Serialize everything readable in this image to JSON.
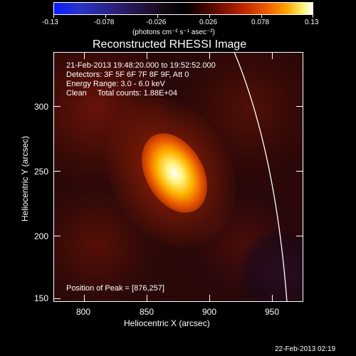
{
  "colorbar": {
    "tick_labels": [
      "-0.13",
      "-0.078",
      "-0.026",
      "0.026",
      "0.078",
      "0.13"
    ],
    "units": "(photons cm⁻² s⁻¹ asec⁻²)"
  },
  "title": "Reconstructed RHESSI Image",
  "info": {
    "line1": "21-Feb-2013 19:48:20.000 to 19:52:52.000",
    "line2": "Detectors: 3F 5F 6F 7F 8F 9F, Att 0",
    "line3": "Energy Range: 3.0 - 6.0 keV",
    "line4": "Clean     Total counts: 1.88E+04"
  },
  "peak": "Position of Peak = [876,257]",
  "axes": {
    "xlabel": "Heliocentric X (arcsec)",
    "ylabel": "Heliocentric Y (arcsec)",
    "x_ticks": [
      "800",
      "850",
      "900",
      "950"
    ],
    "y_ticks": [
      "150",
      "200",
      "250",
      "300"
    ]
  },
  "timestamp": "22-Feb-2013 02:19"
}
